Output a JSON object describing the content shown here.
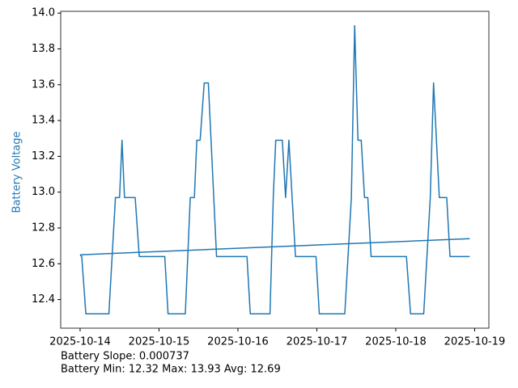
{
  "chart_data": {
    "type": "line",
    "ylabel": "Battery Voltage",
    "ylabel_color": "#1f77b4",
    "annotations": [
      "Battery Slope: 0.000737",
      "Battery Min: 12.32 Max: 13.93 Avg: 12.69"
    ],
    "series": [
      {
        "color": "#1f77b4",
        "x": [
          "2025-10-14T00:00",
          "2025-10-14T00:30",
          "2025-10-14T01:45",
          "2025-10-14T08:45",
          "2025-10-14T10:45",
          "2025-10-14T12:00",
          "2025-10-14T12:45",
          "2025-10-14T13:30",
          "2025-10-14T16:45",
          "2025-10-14T18:00",
          "2025-10-15T01:45",
          "2025-10-15T02:45",
          "2025-10-15T08:00",
          "2025-10-15T09:30",
          "2025-10-15T10:45",
          "2025-10-15T11:30",
          "2025-10-15T12:30",
          "2025-10-15T13:45",
          "2025-10-15T15:00",
          "2025-10-15T17:30",
          "2025-10-16T02:45",
          "2025-10-16T03:45",
          "2025-10-16T09:45",
          "2025-10-16T10:45",
          "2025-10-16T11:30",
          "2025-10-16T13:30",
          "2025-10-16T14:30",
          "2025-10-16T15:30",
          "2025-10-16T17:30",
          "2025-10-16T23:45",
          "2025-10-17T00:45",
          "2025-10-17T08:30",
          "2025-10-17T10:30",
          "2025-10-17T11:30",
          "2025-10-17T12:30",
          "2025-10-17T13:30",
          "2025-10-17T14:30",
          "2025-10-17T15:30",
          "2025-10-17T16:30",
          "2025-10-18T03:15",
          "2025-10-18T04:30",
          "2025-10-18T08:30",
          "2025-10-18T10:30",
          "2025-10-18T11:30",
          "2025-10-18T13:15",
          "2025-10-18T15:30",
          "2025-10-18T16:30",
          "2025-10-18T22:30"
        ],
        "values": [
          12.65,
          12.64,
          12.32,
          12.32,
          12.97,
          12.97,
          13.29,
          12.97,
          12.97,
          12.64,
          12.64,
          12.32,
          12.32,
          12.97,
          12.97,
          13.29,
          13.29,
          13.61,
          13.61,
          12.64,
          12.64,
          12.32,
          12.32,
          12.97,
          13.29,
          13.29,
          12.97,
          13.29,
          12.64,
          12.64,
          12.32,
          12.32,
          12.97,
          13.93,
          13.29,
          13.29,
          12.97,
          12.97,
          12.64,
          12.64,
          12.32,
          12.32,
          12.97,
          13.61,
          12.97,
          12.97,
          12.64,
          12.64
        ]
      },
      {
        "color": "#1f77b4",
        "x": [
          "2025-10-14T00:00",
          "2025-10-18T22:30"
        ],
        "values": [
          12.65,
          12.74
        ]
      }
    ],
    "xlim": [
      "2025-10-13T18:06",
      "2025-10-19T04:19"
    ],
    "xticks": [
      {
        "value": "2025-10-14T00:00",
        "label": "2025-10-14"
      },
      {
        "value": "2025-10-15T00:00",
        "label": "2025-10-15"
      },
      {
        "value": "2025-10-16T00:00",
        "label": "2025-10-16"
      },
      {
        "value": "2025-10-17T00:00",
        "label": "2025-10-17"
      },
      {
        "value": "2025-10-18T00:00",
        "label": "2025-10-18"
      },
      {
        "value": "2025-10-19T00:00",
        "label": "2025-10-19"
      }
    ],
    "ylim": [
      12.24,
      14.01
    ],
    "yticks": [
      12.4,
      12.6,
      12.8,
      {
        "value": 13,
        "label": "13.0"
      },
      13.2,
      13.4,
      13.6,
      13.8,
      {
        "value": 14,
        "label": "14.0"
      }
    ]
  }
}
